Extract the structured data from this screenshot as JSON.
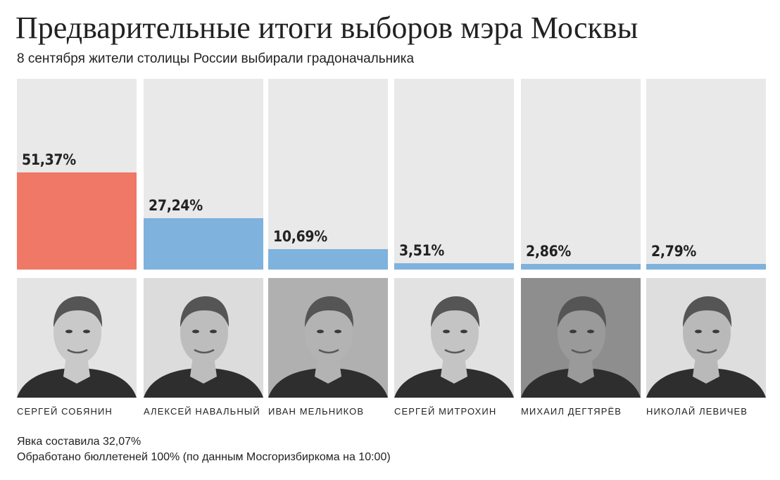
{
  "header": {
    "title": "Предварительные итоги выборов мэра Москвы",
    "subtitle": "8 сентября жители столицы России выбирали градоначальника"
  },
  "colors": {
    "winner": "#ef7866",
    "other": "#7fb2dd",
    "track": "#e9e9e9"
  },
  "chart_data": {
    "type": "bar",
    "categories": [
      "СЕРГЕЙ СОБЯНИН",
      "АЛЕКСЕЙ НАВАЛЬНЫЙ",
      "ИВАН МЕЛЬНИКОВ",
      "СЕРГЕЙ МИТРОХИН",
      "МИХАИЛ ДЕГТЯРЁВ",
      "НИКОЛАЙ ЛЕВИЧЕВ"
    ],
    "values": [
      51.37,
      27.24,
      10.69,
      3.51,
      2.86,
      2.79
    ],
    "value_labels": [
      "51,37%",
      "27,24%",
      "10,69%",
      "3,51%",
      "2,86%",
      "2,79%"
    ],
    "title": "Предварительные итоги выборов мэра Москвы",
    "xlabel": "",
    "ylabel": "",
    "ylim": [
      0,
      100
    ],
    "grid": false,
    "legend": "none"
  },
  "footer": {
    "turnout": "Явка составила 32,07%",
    "processed": "Обработано бюллетеней 100% (по данным Мосгоризбиркома на 10:00)"
  }
}
